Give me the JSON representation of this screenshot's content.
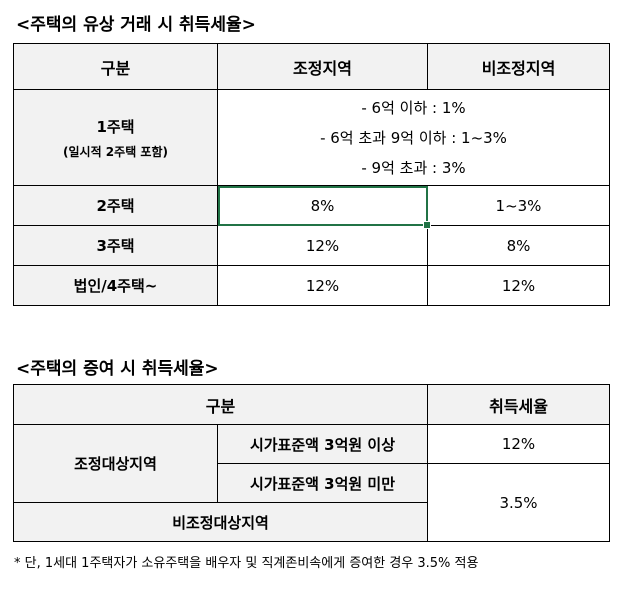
{
  "table1": {
    "title": "<주택의 유상 거래 시 취득세율>",
    "headers": [
      "구분",
      "조정지역",
      "비조정지역"
    ],
    "row1": {
      "label": "1주택",
      "sublabel": "(일시적 2주택 포함)",
      "lines": [
        "- 6억 이하 : 1%",
        "- 6억 초과 9억 이하 : 1~3%",
        "- 9억 초과 : 3%"
      ]
    },
    "rows": [
      {
        "label": "2주택",
        "adjusted": "8%",
        "non_adjusted": "1~3%"
      },
      {
        "label": "3주택",
        "adjusted": "12%",
        "non_adjusted": "8%"
      },
      {
        "label": "법인/4주택~",
        "adjusted": "12%",
        "non_adjusted": "12%"
      }
    ]
  },
  "table2": {
    "title": "<주택의 증여 시 취득세율>",
    "headers": [
      "구분",
      "취득세율"
    ],
    "region_adjusted": "조정대상지역",
    "cond_over": "시가표준액 3억원 이상",
    "cond_under": "시가표준액 3억원 미만",
    "region_non_adjusted": "비조정대상지역",
    "rate_over": "12%",
    "rate_other": "3.5%"
  },
  "footnote": "* 단, 1세대 1주택자가 소유주택을 배우자 및 직계존비속에게 증여한 경우 3.5% 적용"
}
